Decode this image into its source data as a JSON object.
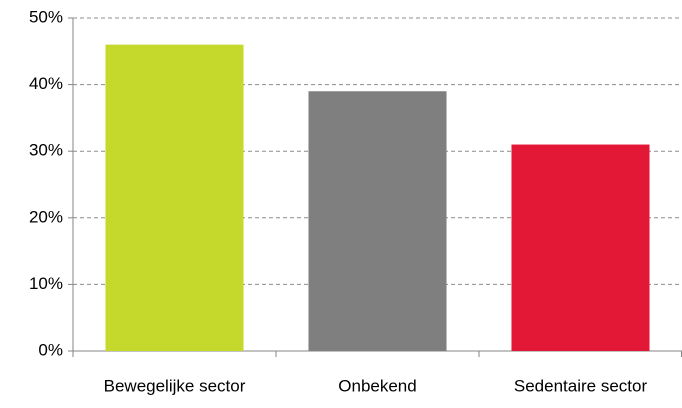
{
  "chart_data": {
    "type": "bar",
    "categories": [
      "Bewegelijke sector",
      "Onbekend",
      "Sedentaire sector"
    ],
    "values": [
      46,
      39,
      31
    ],
    "colors": [
      "#c5d92d",
      "#7f7f7f",
      "#e31837"
    ],
    "ylim": [
      0,
      50
    ],
    "yticks": [
      {
        "value": 0,
        "label": "0%"
      },
      {
        "value": 10,
        "label": "10%"
      },
      {
        "value": 20,
        "label": "20%"
      },
      {
        "value": 30,
        "label": "30%"
      },
      {
        "value": 40,
        "label": "40%"
      },
      {
        "value": 50,
        "label": "50%"
      }
    ],
    "grid": true
  }
}
